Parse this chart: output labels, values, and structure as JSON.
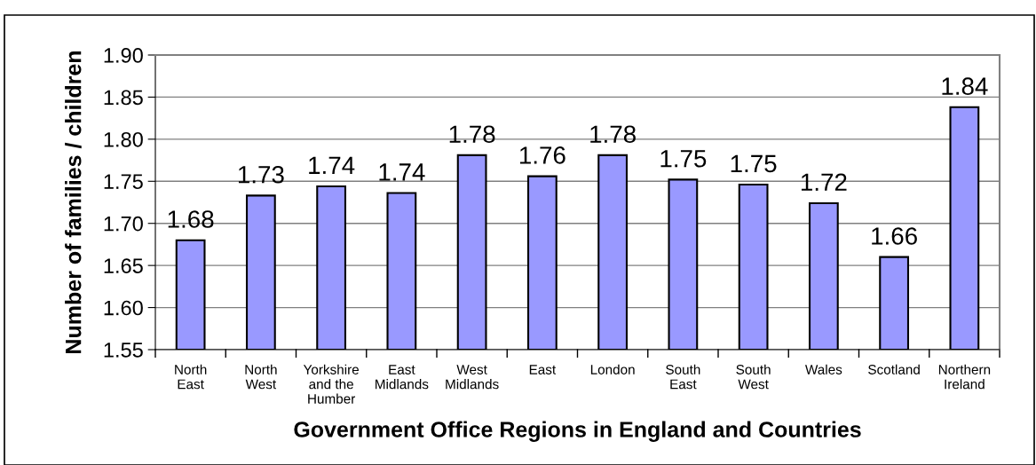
{
  "chart_data": {
    "type": "bar",
    "xlabel": "Government Office Regions in England and Countries",
    "ylabel": "Number of families / children",
    "categories": [
      "North\nEast",
      "North\nWest",
      "Yorkshire\nand the\nHumber",
      "East\nMidlands",
      "West\nMidlands",
      "East",
      "London",
      "South\nEast",
      "South\nWest",
      "Wales",
      "Scotland",
      "Northern\nIreland"
    ],
    "values": [
      1.68,
      1.733,
      1.744,
      1.736,
      1.781,
      1.756,
      1.781,
      1.752,
      1.746,
      1.724,
      1.66,
      1.838
    ],
    "value_labels": [
      "1.68",
      "1.73",
      "1.74",
      "1.74",
      "1.78",
      "1.76",
      "1.78",
      "1.75",
      "1.75",
      "1.72",
      "1.66",
      "1.84"
    ],
    "color": "#9999ff",
    "ylim": [
      1.55,
      1.9
    ],
    "yticks": [
      "1.55",
      "1.60",
      "1.65",
      "1.70",
      "1.75",
      "1.80",
      "1.85",
      "1.90"
    ],
    "grid": "y"
  }
}
